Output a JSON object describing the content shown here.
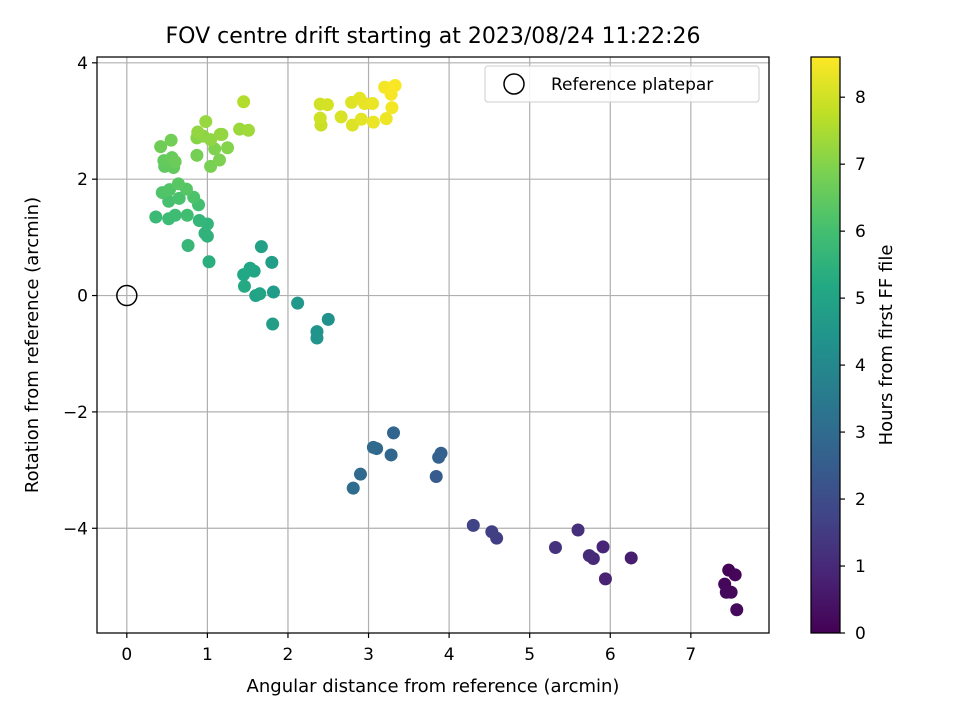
{
  "chart_data": {
    "type": "scatter",
    "title": "FOV centre drift starting at 2023/08/24 11:22:26",
    "xlabel": "Angular distance from reference (arcmin)",
    "ylabel": "Rotation from reference (arcmin)",
    "xlim": [
      -0.37,
      7.97
    ],
    "ylim": [
      -5.8,
      4.1
    ],
    "xticks": [
      0,
      1,
      2,
      3,
      4,
      5,
      6,
      7
    ],
    "yticks": [
      -4,
      -2,
      0,
      2,
      4
    ],
    "xtick_labels": [
      "0",
      "1",
      "2",
      "3",
      "4",
      "5",
      "6",
      "7"
    ],
    "ytick_labels": [
      "−4",
      "−2",
      "0",
      "2",
      "4"
    ],
    "grid": true,
    "legend": {
      "position": "top-right",
      "entries": [
        "Reference platepar"
      ]
    },
    "reference_point": {
      "name": "Reference platepar",
      "x": 0,
      "y": 0,
      "marker": "open-circle"
    },
    "colorbar": {
      "label": "Hours from first FF file",
      "colormap": "viridis",
      "range": [
        0,
        8.6
      ],
      "ticks": [
        0,
        1,
        2,
        3,
        4,
        5,
        6,
        7,
        8
      ],
      "tick_labels": [
        "0",
        "1",
        "2",
        "3",
        "4",
        "5",
        "6",
        "7",
        "8"
      ]
    },
    "points": [
      {
        "x": 7.47,
        "y": -4.72,
        "t": 0.1
      },
      {
        "x": 7.55,
        "y": -4.8,
        "t": 0.12
      },
      {
        "x": 7.42,
        "y": -4.96,
        "t": 0.15
      },
      {
        "x": 7.5,
        "y": -5.1,
        "t": 0.18
      },
      {
        "x": 7.44,
        "y": -5.1,
        "t": 0.2
      },
      {
        "x": 7.57,
        "y": -5.4,
        "t": 0.22
      },
      {
        "x": 6.26,
        "y": -4.51,
        "t": 0.7
      },
      {
        "x": 5.94,
        "y": -4.87,
        "t": 0.8
      },
      {
        "x": 5.91,
        "y": -4.32,
        "t": 0.9
      },
      {
        "x": 5.79,
        "y": -4.52,
        "t": 1.0
      },
      {
        "x": 5.74,
        "y": -4.47,
        "t": 1.05
      },
      {
        "x": 5.6,
        "y": -4.03,
        "t": 1.15
      },
      {
        "x": 5.32,
        "y": -4.33,
        "t": 1.25
      },
      {
        "x": 4.59,
        "y": -4.17,
        "t": 1.55
      },
      {
        "x": 4.53,
        "y": -4.06,
        "t": 1.6
      },
      {
        "x": 4.3,
        "y": -3.95,
        "t": 1.7
      },
      {
        "x": 3.84,
        "y": -3.11,
        "t": 2.45
      },
      {
        "x": 3.9,
        "y": -2.71,
        "t": 2.6
      },
      {
        "x": 3.87,
        "y": -2.78,
        "t": 2.65
      },
      {
        "x": 3.31,
        "y": -2.36,
        "t": 2.8
      },
      {
        "x": 3.28,
        "y": -2.74,
        "t": 2.85
      },
      {
        "x": 3.1,
        "y": -2.63,
        "t": 2.9
      },
      {
        "x": 3.06,
        "y": -2.61,
        "t": 2.95
      },
      {
        "x": 2.9,
        "y": -3.07,
        "t": 3.0
      },
      {
        "x": 2.81,
        "y": -3.31,
        "t": 3.05
      },
      {
        "x": 2.5,
        "y": -0.41,
        "t": 4.3
      },
      {
        "x": 2.36,
        "y": -0.62,
        "t": 4.4
      },
      {
        "x": 2.36,
        "y": -0.73,
        "t": 4.45
      },
      {
        "x": 2.12,
        "y": -0.13,
        "t": 4.55
      },
      {
        "x": 1.82,
        "y": 0.06,
        "t": 4.7
      },
      {
        "x": 1.8,
        "y": 0.57,
        "t": 4.75
      },
      {
        "x": 1.81,
        "y": -0.49,
        "t": 4.8
      },
      {
        "x": 1.67,
        "y": 0.84,
        "t": 4.9
      },
      {
        "x": 1.6,
        "y": 0.0,
        "t": 4.95
      },
      {
        "x": 1.65,
        "y": 0.03,
        "t": 5.0
      },
      {
        "x": 1.58,
        "y": 0.42,
        "t": 5.05
      },
      {
        "x": 1.53,
        "y": 0.47,
        "t": 5.1
      },
      {
        "x": 1.45,
        "y": 0.36,
        "t": 5.15
      },
      {
        "x": 1.46,
        "y": 0.16,
        "t": 5.2
      },
      {
        "x": 1.02,
        "y": 0.58,
        "t": 5.4
      },
      {
        "x": 1.0,
        "y": 1.02,
        "t": 5.5
      },
      {
        "x": 0.97,
        "y": 1.07,
        "t": 5.55
      },
      {
        "x": 1.0,
        "y": 1.23,
        "t": 5.6
      },
      {
        "x": 0.9,
        "y": 1.29,
        "t": 5.65
      },
      {
        "x": 0.76,
        "y": 0.86,
        "t": 5.7
      },
      {
        "x": 0.36,
        "y": 1.35,
        "t": 5.8
      },
      {
        "x": 0.52,
        "y": 1.32,
        "t": 5.85
      },
      {
        "x": 0.6,
        "y": 1.38,
        "t": 5.9
      },
      {
        "x": 0.75,
        "y": 1.38,
        "t": 5.95
      },
      {
        "x": 0.89,
        "y": 1.56,
        "t": 6.0
      },
      {
        "x": 0.52,
        "y": 1.62,
        "t": 6.05
      },
      {
        "x": 0.65,
        "y": 1.67,
        "t": 6.1
      },
      {
        "x": 0.83,
        "y": 1.69,
        "t": 6.15
      },
      {
        "x": 0.44,
        "y": 1.77,
        "t": 6.2
      },
      {
        "x": 0.53,
        "y": 1.82,
        "t": 6.25
      },
      {
        "x": 0.74,
        "y": 1.83,
        "t": 6.3
      },
      {
        "x": 0.64,
        "y": 1.92,
        "t": 6.35
      },
      {
        "x": 0.47,
        "y": 2.22,
        "t": 6.45
      },
      {
        "x": 0.58,
        "y": 2.2,
        "t": 6.5
      },
      {
        "x": 0.46,
        "y": 2.32,
        "t": 6.55
      },
      {
        "x": 0.56,
        "y": 2.37,
        "t": 6.6
      },
      {
        "x": 0.6,
        "y": 2.3,
        "t": 6.65
      },
      {
        "x": 0.42,
        "y": 2.56,
        "t": 6.7
      },
      {
        "x": 0.55,
        "y": 2.67,
        "t": 6.75
      },
      {
        "x": 0.87,
        "y": 2.41,
        "t": 6.8
      },
      {
        "x": 1.04,
        "y": 2.22,
        "t": 6.85
      },
      {
        "x": 1.15,
        "y": 2.33,
        "t": 6.9
      },
      {
        "x": 1.09,
        "y": 2.52,
        "t": 6.95
      },
      {
        "x": 1.25,
        "y": 2.54,
        "t": 7.0
      },
      {
        "x": 0.87,
        "y": 2.71,
        "t": 7.05
      },
      {
        "x": 0.95,
        "y": 2.74,
        "t": 7.1
      },
      {
        "x": 1.04,
        "y": 2.68,
        "t": 7.15
      },
      {
        "x": 1.18,
        "y": 2.77,
        "t": 7.15
      },
      {
        "x": 1.16,
        "y": 2.77,
        "t": 7.2
      },
      {
        "x": 0.88,
        "y": 2.81,
        "t": 7.2
      },
      {
        "x": 0.98,
        "y": 2.99,
        "t": 7.25
      },
      {
        "x": 1.4,
        "y": 2.86,
        "t": 7.3
      },
      {
        "x": 1.51,
        "y": 2.84,
        "t": 7.35
      },
      {
        "x": 1.45,
        "y": 3.33,
        "t": 7.6
      },
      {
        "x": 2.41,
        "y": 2.93,
        "t": 7.9
      },
      {
        "x": 2.4,
        "y": 3.05,
        "t": 7.95
      },
      {
        "x": 2.4,
        "y": 3.29,
        "t": 8.0
      },
      {
        "x": 2.49,
        "y": 3.28,
        "t": 8.05
      },
      {
        "x": 2.66,
        "y": 3.07,
        "t": 8.1
      },
      {
        "x": 2.8,
        "y": 2.93,
        "t": 8.15
      },
      {
        "x": 2.79,
        "y": 3.32,
        "t": 8.2
      },
      {
        "x": 2.89,
        "y": 3.39,
        "t": 8.25
      },
      {
        "x": 2.91,
        "y": 3.03,
        "t": 8.25
      },
      {
        "x": 2.95,
        "y": 3.3,
        "t": 8.3
      },
      {
        "x": 3.05,
        "y": 3.3,
        "t": 8.35
      },
      {
        "x": 3.06,
        "y": 2.98,
        "t": 8.35
      },
      {
        "x": 3.22,
        "y": 3.04,
        "t": 8.4
      },
      {
        "x": 3.2,
        "y": 3.58,
        "t": 8.45
      },
      {
        "x": 3.29,
        "y": 3.23,
        "t": 8.45
      },
      {
        "x": 3.28,
        "y": 3.46,
        "t": 8.5
      },
      {
        "x": 3.28,
        "y": 3.57,
        "t": 8.52
      },
      {
        "x": 3.33,
        "y": 3.61,
        "t": 8.55
      }
    ]
  }
}
